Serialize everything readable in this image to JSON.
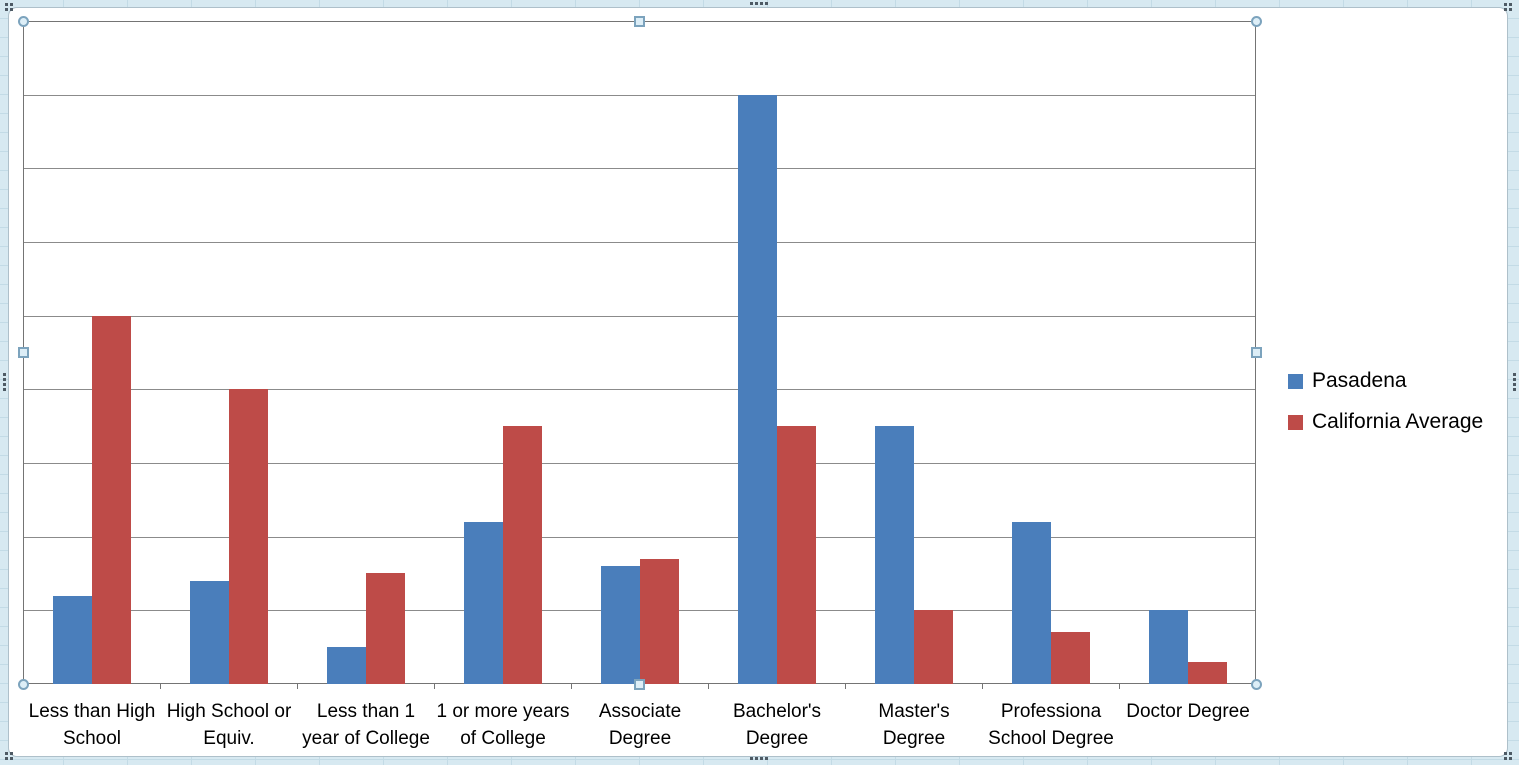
{
  "chart_data": {
    "type": "bar",
    "title": "",
    "xlabel": "",
    "ylabel": "",
    "ylim": [
      0,
      45
    ],
    "y_tick_step": 5,
    "y_axis_labels_visible": false,
    "gridlines": "horizontal",
    "legend_position": "right-middle",
    "categories": [
      {
        "label": "Less than High School",
        "lines": [
          "Less than High",
          "School"
        ]
      },
      {
        "label": "High School or Equiv.",
        "lines": [
          "High School or",
          "Equiv."
        ]
      },
      {
        "label": "Less than 1 year of College",
        "lines": [
          "Less than 1",
          "year of College"
        ]
      },
      {
        "label": "1 or more years of College",
        "lines": [
          "1 or more years",
          "of College"
        ]
      },
      {
        "label": "Associate Degree",
        "lines": [
          "Associate",
          "Degree"
        ]
      },
      {
        "label": "Bachelor's Degree",
        "lines": [
          "Bachelor's",
          "Degree"
        ]
      },
      {
        "label": "Master's Degree",
        "lines": [
          "Master's",
          "Degree"
        ]
      },
      {
        "label": "Professiona School Degree",
        "lines": [
          "Professiona",
          "School Degree"
        ]
      },
      {
        "label": "Doctor Degree",
        "lines": [
          "Doctor Degree"
        ]
      }
    ],
    "series": [
      {
        "name": "Pasadena",
        "color": "#4A7EBB",
        "values": [
          6,
          7,
          2.5,
          11,
          8,
          40,
          17.5,
          11,
          5
        ]
      },
      {
        "name": "California Average",
        "color": "#BE4B48",
        "values": [
          25,
          20,
          7.5,
          17.5,
          8.5,
          17.5,
          5,
          3.5,
          1.5
        ]
      }
    ]
  },
  "colors": {
    "series_blue": "#4A7EBB",
    "series_red": "#BE4B48",
    "gridline": "#8b8b8b",
    "plot_border": "#747474",
    "selection_handle_fill": "#ddeef7",
    "selection_handle_border": "#7ca3bd",
    "worksheet_background": "#d7e9f1"
  },
  "selection": {
    "state": "chart selected, plot area active"
  }
}
